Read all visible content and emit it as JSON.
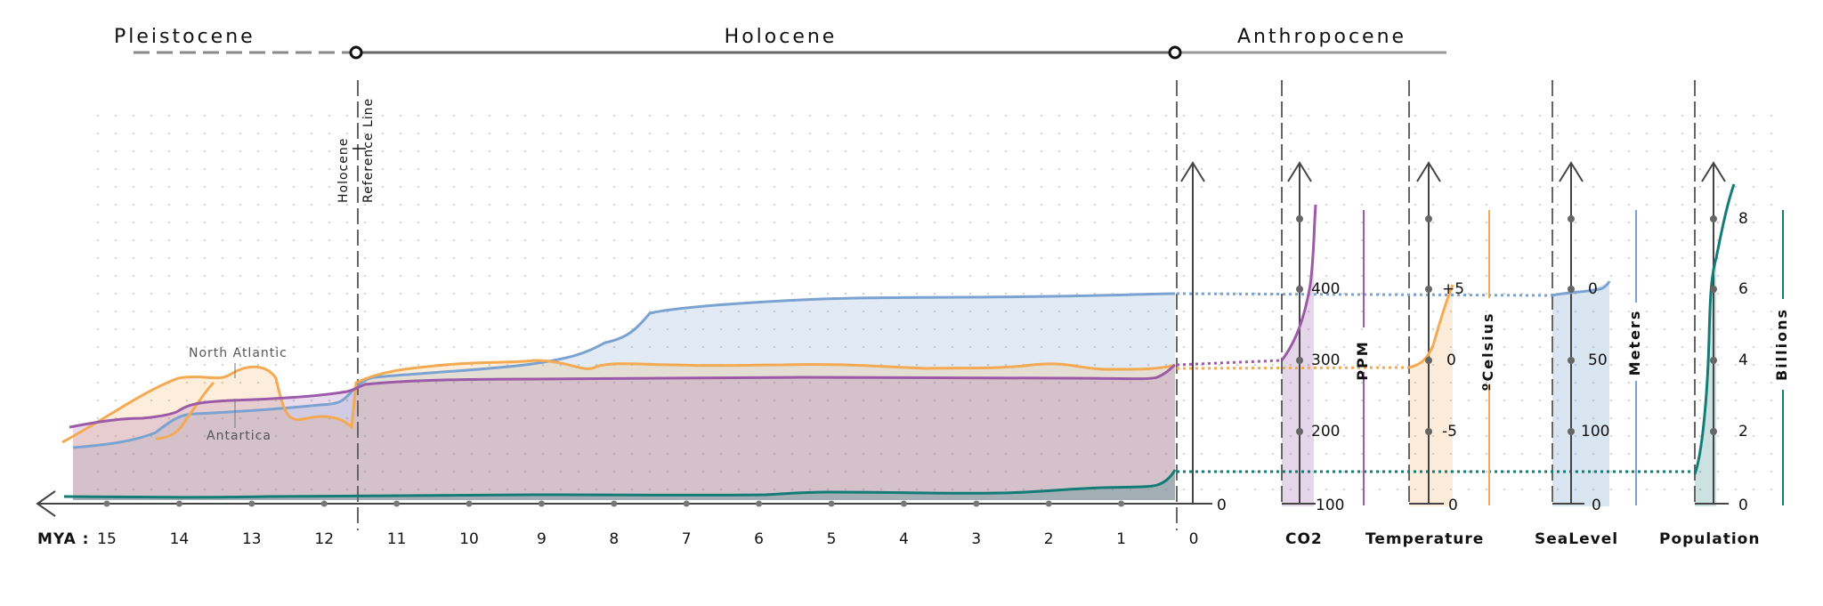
{
  "chart_data": {
    "type": "line",
    "eras": {
      "pleistocene": "Pleistocene",
      "holocene": "Holocene",
      "anthropocene": "Anthropocene"
    },
    "reference_line": {
      "label_line1": "Holocene",
      "label_line2": "Reference Line"
    },
    "x_axis": {
      "prefix": "MYA :",
      "ticks": [
        "15",
        "14",
        "13",
        "12",
        "11",
        "10",
        "9",
        "8",
        "7",
        "6",
        "5",
        "4",
        "3",
        "2",
        "1",
        "0"
      ]
    },
    "annotations": {
      "north_atlantic": "North Atlantic",
      "antarctica": "Antartica"
    },
    "panels": {
      "co2": {
        "label": "CO2",
        "unit": "PPM",
        "ticks": [
          "400",
          "300",
          "200",
          "100"
        ]
      },
      "temperature": {
        "label": "Temperature",
        "unit": "ºCelsius",
        "ticks": [
          "+5",
          "0",
          "-5",
          "0"
        ]
      },
      "sealevel": {
        "label": "SeaLevel",
        "unit": "Meters",
        "ticks": [
          "0",
          "50",
          "100",
          "0"
        ]
      },
      "population": {
        "label": "Population",
        "unit": "Billions",
        "ticks": [
          "8",
          "6",
          "4",
          "2",
          "0"
        ]
      },
      "zero_tick": "0"
    },
    "series": [
      {
        "name": "Sea Level",
        "color": "#7ba3d2"
      },
      {
        "name": "Temperature",
        "color": "#f4aa52"
      },
      {
        "name": "CO2",
        "color": "#9c5aa8"
      },
      {
        "name": "Population",
        "color": "#137c77"
      }
    ],
    "grid": true
  }
}
